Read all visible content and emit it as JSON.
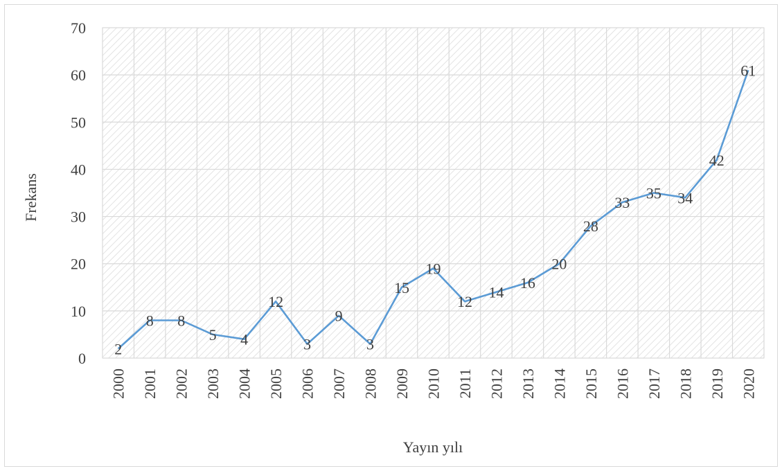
{
  "chart_data": {
    "type": "line",
    "title": "",
    "xlabel": "Yayın yılı",
    "ylabel": "Frekans",
    "ylim": [
      0,
      70
    ],
    "yticks": [
      0,
      10,
      20,
      30,
      40,
      50,
      60,
      70
    ],
    "grid": true,
    "legend": "none",
    "categories": [
      "2000",
      "2001",
      "2002",
      "2003",
      "2004",
      "2005",
      "2006",
      "2007",
      "2008",
      "2009",
      "2010",
      "2011",
      "2012",
      "2013",
      "2014",
      "2015",
      "2016",
      "2017",
      "2018",
      "2019",
      "2020"
    ],
    "series": [
      {
        "values": [
          2,
          8,
          8,
          5,
          4,
          12,
          3,
          9,
          3,
          15,
          19,
          12,
          14,
          16,
          20,
          28,
          33,
          35,
          34,
          42,
          61
        ],
        "color": "#5b9bd5"
      }
    ],
    "colors": {
      "line": "#5b9bd5",
      "grid": "#d9d9d9",
      "hatch": "#dcdcdc",
      "text": "#404040"
    }
  }
}
